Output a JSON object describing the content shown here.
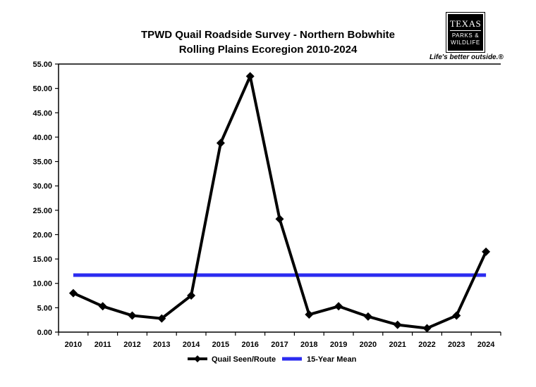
{
  "logo": {
    "line1": "TEXAS",
    "line2": "PARKS &",
    "line3": "WILDLIFE",
    "tagline": "Life's better outside.®"
  },
  "chart_data": {
    "type": "line",
    "title": "TPWD Quail Roadside Survey - Northern Bobwhite",
    "subtitle": "Rolling Plains Ecoregion 2010-2024",
    "xlabel": "",
    "ylabel": "",
    "categories": [
      "2010",
      "2011",
      "2012",
      "2013",
      "2014",
      "2015",
      "2016",
      "2017",
      "2018",
      "2019",
      "2020",
      "2021",
      "2022",
      "2023",
      "2024"
    ],
    "ylim": [
      0,
      55
    ],
    "yticks": [
      0,
      5,
      10,
      15,
      20,
      25,
      30,
      35,
      40,
      45,
      50,
      55
    ],
    "ytick_labels": [
      "0.00",
      "5.00",
      "10.00",
      "15.00",
      "20.00",
      "25.00",
      "30.00",
      "35.00",
      "40.00",
      "45.00",
      "50.00",
      "55.00"
    ],
    "grid": false,
    "legend_position": "bottom",
    "series": [
      {
        "name": "Quail Seen/Route",
        "color": "#000000",
        "marker": "diamond",
        "values": [
          8.0,
          5.3,
          3.4,
          2.8,
          7.5,
          38.8,
          52.5,
          23.2,
          3.6,
          5.3,
          3.2,
          1.5,
          0.8,
          3.4,
          16.5
        ]
      },
      {
        "name": "15-Year Mean",
        "color": "#2b2bf0",
        "marker": "none",
        "values": [
          11.7,
          11.7,
          11.7,
          11.7,
          11.7,
          11.7,
          11.7,
          11.7,
          11.7,
          11.7,
          11.7,
          11.7,
          11.7,
          11.7,
          11.7
        ]
      }
    ]
  }
}
